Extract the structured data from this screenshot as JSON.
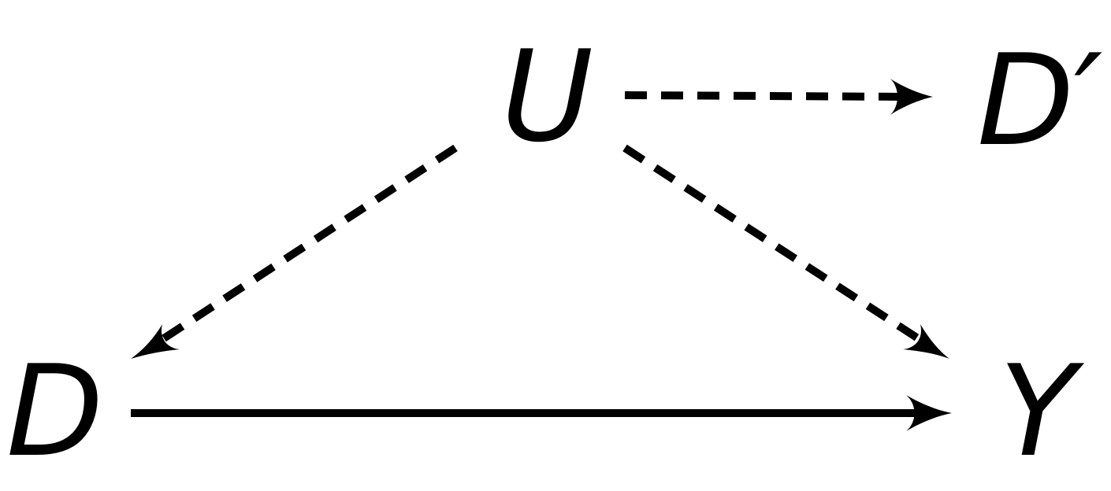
{
  "diagram": {
    "nodes": {
      "U": "U",
      "D_prime": "D′",
      "D": "D",
      "Y": "Y"
    },
    "edges": [
      {
        "from": "U",
        "to": "D′",
        "style": "dashed"
      },
      {
        "from": "U",
        "to": "D",
        "style": "dashed"
      },
      {
        "from": "U",
        "to": "Y",
        "style": "dashed"
      },
      {
        "from": "D",
        "to": "Y",
        "style": "solid"
      }
    ],
    "colors": {
      "ink": "#000000",
      "background": "#ffffff"
    }
  }
}
